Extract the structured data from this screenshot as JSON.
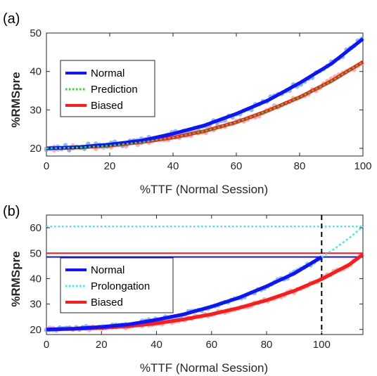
{
  "colors": {
    "normal": "#0a14ff",
    "normal_points": "#6fa8e6",
    "biased": "#ff1a1a",
    "biased_points": "#f39a9a",
    "prediction": "#2bdc2b",
    "prolongation": "#33f0f0",
    "vline": "#000000"
  },
  "chart_data": [
    {
      "type": "line",
      "panel_label": "(a)",
      "xlabel": "%TTF (Normal Session)",
      "ylabel": "%RMSpre",
      "xlim": [
        0,
        100
      ],
      "ylim": [
        18,
        50
      ],
      "xticks": [
        0,
        20,
        40,
        60,
        80,
        100
      ],
      "yticks": [
        20,
        30,
        40,
        50
      ],
      "legend_position": "left-middle",
      "series": [
        {
          "name": "Normal",
          "style": "solid",
          "x": [
            0,
            10,
            20,
            30,
            40,
            50,
            60,
            70,
            80,
            90,
            100
          ],
          "y": [
            20,
            20.3,
            21,
            22,
            23.8,
            26,
            29,
            32.5,
            37,
            42,
            48.5
          ]
        },
        {
          "name": "Prediction",
          "style": "dotted",
          "x": [
            0,
            10,
            20,
            30,
            40,
            50,
            60,
            70,
            80,
            90,
            100
          ],
          "y": [
            20,
            20.2,
            20.7,
            21.6,
            22.8,
            24.5,
            26.8,
            29.8,
            33.3,
            37.5,
            42.5
          ]
        },
        {
          "name": "Biased",
          "style": "solid",
          "x": [
            0,
            10,
            20,
            30,
            40,
            50,
            60,
            70,
            80,
            90,
            100
          ],
          "y": [
            20,
            20.2,
            20.7,
            21.6,
            22.8,
            24.5,
            26.8,
            29.8,
            33.3,
            37.5,
            42.5
          ]
        }
      ]
    },
    {
      "type": "line",
      "panel_label": "(b)",
      "xlabel": "%TTF (Normal Session)",
      "ylabel": "%RMSpre",
      "xlim": [
        0,
        115
      ],
      "ylim": [
        18,
        65
      ],
      "xticks": [
        0,
        20,
        40,
        60,
        80,
        100
      ],
      "yticks": [
        20,
        30,
        40,
        50,
        60
      ],
      "legend_position": "bottom-left",
      "series": [
        {
          "name": "Normal",
          "style": "solid",
          "x": [
            0,
            10,
            20,
            30,
            40,
            50,
            60,
            70,
            80,
            90,
            100
          ],
          "y": [
            20,
            20.3,
            21,
            22,
            23.8,
            26,
            29,
            32.5,
            37,
            42,
            48.5
          ]
        },
        {
          "name": "Prolongation",
          "style": "dotted",
          "x": [
            100,
            105,
            110,
            115
          ],
          "y": [
            48.5,
            52,
            56,
            60.5
          ]
        },
        {
          "name": "Biased",
          "style": "solid",
          "x": [
            0,
            10,
            20,
            30,
            40,
            50,
            60,
            70,
            80,
            90,
            100,
            110,
            115
          ],
          "y": [
            20,
            20.2,
            20.6,
            21.3,
            22.4,
            24,
            26,
            28.5,
            31.5,
            35.2,
            39.8,
            45.5,
            49.5
          ]
        }
      ],
      "horizontal_lines": [
        {
          "y": 60.5,
          "color_key": "prolongation",
          "style": "dotted"
        },
        {
          "y": 50,
          "color_key": "biased",
          "style": "solid"
        },
        {
          "y": 48.5,
          "color_key": "normal",
          "style": "solid"
        }
      ],
      "vertical_lines": [
        {
          "x": 100,
          "style": "dashed"
        }
      ]
    }
  ]
}
